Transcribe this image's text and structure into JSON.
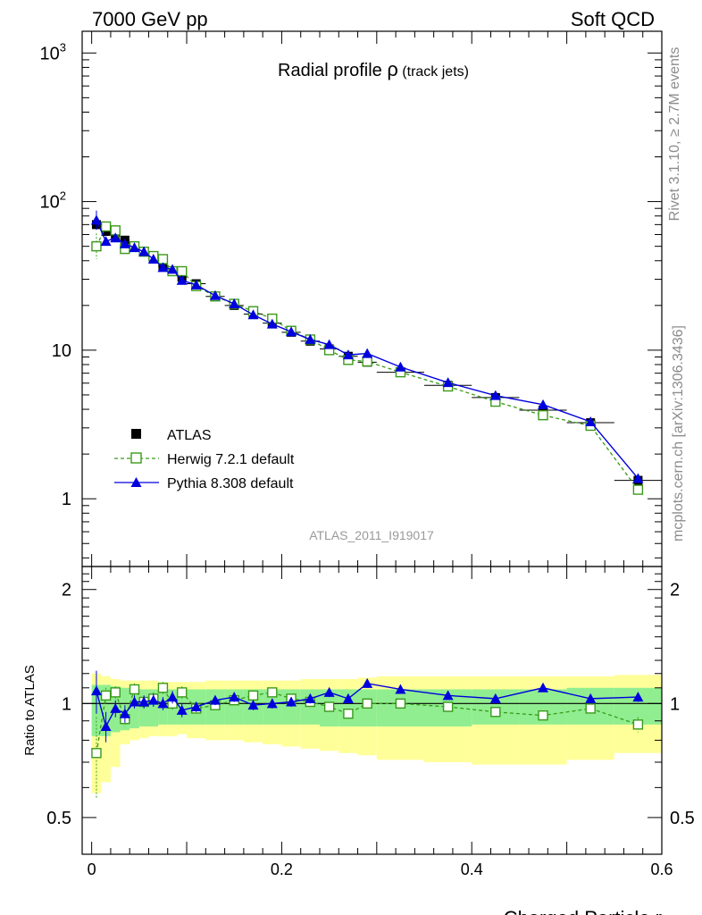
{
  "header": {
    "left": "7000 GeV pp",
    "right": "Soft QCD",
    "side_rivet": "Rivet 3.1.10, ≥ 2.7M events",
    "side_site": "mcplots.cern.ch [arXiv:1306.3436]"
  },
  "plot": {
    "title_main": "Radial profile ",
    "title_symbol": "ρ",
    "title_sub": " (track jets)",
    "watermark": "ATLAS_2011_I919017",
    "xlabel": "Charged Particle r",
    "ratio_ylabel": "Ratio to ATLAS"
  },
  "main_yticks": [
    {
      "v": 1000,
      "label": "10",
      "sup": "3"
    },
    {
      "v": 100,
      "label": "10",
      "sup": "2"
    },
    {
      "v": 10,
      "label": "10",
      "sup": ""
    },
    {
      "v": 1,
      "label": "1",
      "sup": ""
    }
  ],
  "ratio_yticks": [
    {
      "v": 2,
      "label": "2"
    },
    {
      "v": 1,
      "label": "1"
    },
    {
      "v": 0.5,
      "label": "0.5"
    }
  ],
  "xticks": [
    {
      "v": 0,
      "label": "0"
    },
    {
      "v": 0.2,
      "label": "0.2"
    },
    {
      "v": 0.4,
      "label": "0.4"
    },
    {
      "v": 0.6,
      "label": "0.6"
    }
  ],
  "legend": [
    {
      "key": "atlas",
      "label": "ATLAS"
    },
    {
      "key": "herwig",
      "label": "Herwig 7.2.1 default"
    },
    {
      "key": "pythia",
      "label": "Pythia 8.308 default"
    }
  ],
  "colors": {
    "atlas": "#000000",
    "herwig": "#3a9a1a",
    "pythia": "#0000dd",
    "band_inner": "#90ee90",
    "band_outer": "#ffff99",
    "watermark": "#999999",
    "side_text": "#8c8c8c"
  },
  "chart_data": {
    "type": "scatter",
    "xlim": [
      -0.01,
      0.6
    ],
    "main_ylim": [
      0.35,
      1400
    ],
    "main_yscale": "log",
    "ratio_ylim": [
      0.4,
      2.3
    ],
    "ratio_yscale": "log",
    "series": [
      {
        "name": "ATLAS",
        "x": [
          0.005,
          0.015,
          0.025,
          0.035,
          0.045,
          0.055,
          0.065,
          0.075,
          0.085,
          0.095,
          0.11,
          0.13,
          0.15,
          0.17,
          0.19,
          0.21,
          0.23,
          0.25,
          0.27,
          0.29,
          0.325,
          0.375,
          0.425,
          0.475,
          0.525,
          0.575
        ],
        "y": [
          70,
          63,
          59,
          55,
          50,
          46,
          41,
          37,
          34,
          31,
          28,
          23,
          20,
          17.5,
          15.2,
          13.2,
          11.5,
          10.2,
          9.1,
          8.3,
          7.1,
          5.8,
          4.8,
          3.95,
          3.25,
          1.33
        ],
        "xerr": [
          0.005,
          0.005,
          0.005,
          0.005,
          0.005,
          0.005,
          0.005,
          0.005,
          0.005,
          0.005,
          0.01,
          0.01,
          0.01,
          0.01,
          0.01,
          0.01,
          0.01,
          0.01,
          0.01,
          0.01,
          0.025,
          0.025,
          0.025,
          0.025,
          0.025,
          0.025
        ],
        "band_inner": [
          0.82,
          0.82,
          0.84,
          0.85,
          0.86,
          0.87,
          0.87,
          0.88,
          0.88,
          0.88,
          0.88,
          0.88,
          0.88,
          0.88,
          0.88,
          0.88,
          0.88,
          0.87,
          0.87,
          0.87,
          0.87,
          0.87,
          0.88,
          0.88,
          0.88,
          0.88
        ],
        "band_inner_hi": [
          1.12,
          1.12,
          1.11,
          1.1,
          1.1,
          1.09,
          1.09,
          1.09,
          1.09,
          1.09,
          1.09,
          1.09,
          1.09,
          1.09,
          1.09,
          1.09,
          1.09,
          1.09,
          1.09,
          1.09,
          1.09,
          1.09,
          1.09,
          1.09,
          1.1,
          1.1
        ],
        "band_outer": [
          0.58,
          0.62,
          0.68,
          0.78,
          0.8,
          0.81,
          0.82,
          0.82,
          0.82,
          0.83,
          0.81,
          0.8,
          0.8,
          0.79,
          0.78,
          0.77,
          0.76,
          0.75,
          0.74,
          0.73,
          0.71,
          0.7,
          0.69,
          0.69,
          0.71,
          0.74
        ],
        "band_outer_hi": [
          1.2,
          1.18,
          1.16,
          1.15,
          1.15,
          1.15,
          1.15,
          1.14,
          1.14,
          1.14,
          1.14,
          1.15,
          1.15,
          1.15,
          1.15,
          1.15,
          1.16,
          1.16,
          1.16,
          1.17,
          1.18,
          1.18,
          1.18,
          1.18,
          1.18,
          1.19
        ]
      },
      {
        "name": "Herwig 7.2.1 default",
        "x": [
          0.005,
          0.015,
          0.025,
          0.035,
          0.045,
          0.055,
          0.065,
          0.075,
          0.085,
          0.095,
          0.11,
          0.13,
          0.15,
          0.17,
          0.19,
          0.21,
          0.23,
          0.25,
          0.27,
          0.29,
          0.325,
          0.375,
          0.425,
          0.475,
          0.525,
          0.575
        ],
        "y": [
          50,
          68,
          64,
          48,
          50,
          46,
          43,
          41,
          34,
          34,
          27,
          23,
          20.5,
          18.3,
          16.3,
          13.5,
          11.8,
          10.0,
          8.6,
          8.4,
          7.1,
          5.7,
          4.5,
          3.65,
          3.1,
          1.15
        ],
        "ratio": [
          0.74,
          1.05,
          1.07,
          0.91,
          1.09,
          1.01,
          1.03,
          1.1,
          1.0,
          1.07,
          0.97,
          0.99,
          1.02,
          1.05,
          1.07,
          1.03,
          1.01,
          0.98,
          0.94,
          1.0,
          1.0,
          0.98,
          0.95,
          0.93,
          0.97,
          0.88
        ],
        "ratio_err": [
          0.18,
          0.05,
          0.04,
          0.04,
          0.04,
          0.04,
          0.04,
          0.04,
          0.04,
          0.04,
          0.03,
          0.03,
          0.03,
          0.03,
          0.03,
          0.03,
          0.03,
          0.03,
          0.03,
          0.03,
          0.02,
          0.02,
          0.02,
          0.02,
          0.02,
          0.04
        ]
      },
      {
        "name": "Pythia 8.308 default",
        "x": [
          0.005,
          0.015,
          0.025,
          0.035,
          0.045,
          0.055,
          0.065,
          0.075,
          0.085,
          0.095,
          0.11,
          0.13,
          0.15,
          0.17,
          0.19,
          0.21,
          0.23,
          0.25,
          0.27,
          0.29,
          0.325,
          0.375,
          0.425,
          0.475,
          0.525,
          0.575
        ],
        "y": [
          75,
          54,
          57,
          52,
          49,
          46,
          41,
          36,
          35,
          29.5,
          27.5,
          23.3,
          20.5,
          17.3,
          15,
          13.3,
          11.8,
          10.9,
          9.3,
          9.5,
          7.7,
          6.05,
          4.95,
          4.3,
          3.3,
          1.37
        ],
        "ratio": [
          1.08,
          0.87,
          0.97,
          0.94,
          1.01,
          1.01,
          1.02,
          1.0,
          1.04,
          0.96,
          0.98,
          1.02,
          1.04,
          0.99,
          1.0,
          1.01,
          1.03,
          1.07,
          1.03,
          1.13,
          1.09,
          1.05,
          1.03,
          1.1,
          1.03,
          1.04
        ],
        "ratio_err": [
          0.14,
          0.08,
          0.05,
          0.05,
          0.04,
          0.04,
          0.04,
          0.04,
          0.04,
          0.04,
          0.03,
          0.03,
          0.03,
          0.03,
          0.03,
          0.03,
          0.03,
          0.03,
          0.03,
          0.03,
          0.02,
          0.02,
          0.02,
          0.02,
          0.02,
          0.03
        ]
      }
    ]
  }
}
